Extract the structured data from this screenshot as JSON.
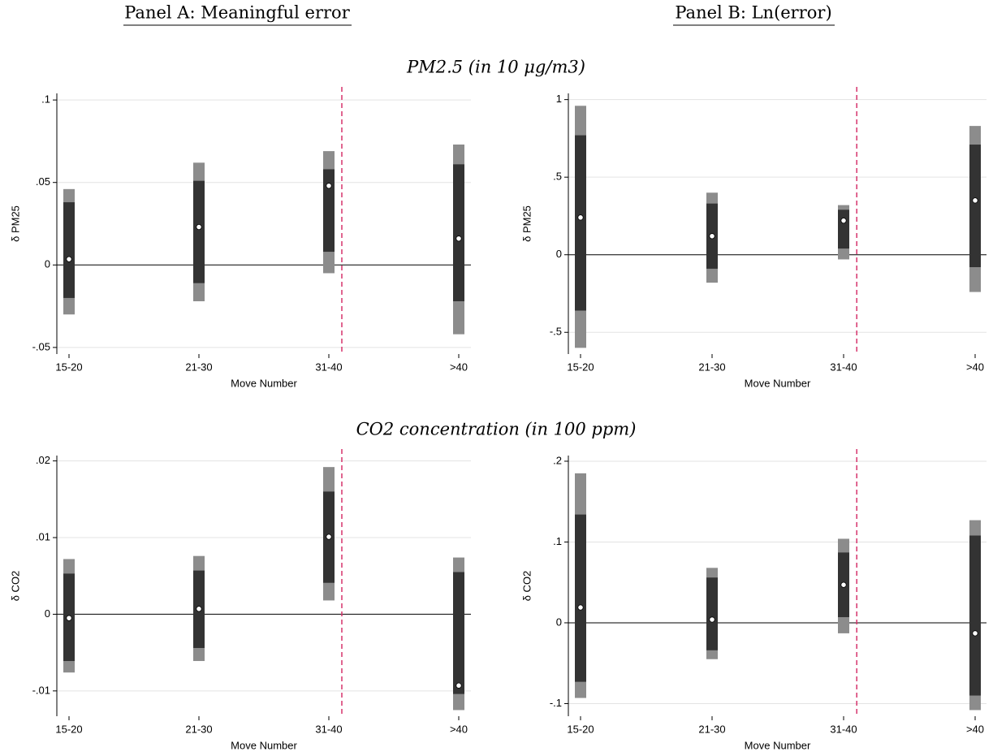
{
  "headers": [
    "Panel A: Meaningful error",
    "Panel B: Ln(error)"
  ],
  "row_titles": [
    "PM2.5 (in 10 μg/m3)",
    "CO2 concentration (in 100 ppm)"
  ],
  "chart_data": [
    {
      "type": "coefplot",
      "ylabel": "δ PM25",
      "xlabel": "Move Number",
      "categories": [
        "15-20",
        "21-30",
        "31-40",
        ">40"
      ],
      "values": [
        0.0035,
        0.023,
        0.048,
        0.016
      ],
      "inner_low": [
        -0.02,
        -0.011,
        0.008,
        -0.022
      ],
      "inner_high": [
        0.038,
        0.051,
        0.058,
        0.061
      ],
      "outer_low": [
        -0.03,
        -0.022,
        -0.005,
        -0.042
      ],
      "outer_high": [
        0.046,
        0.062,
        0.069,
        0.073
      ],
      "ylim": [
        -0.054,
        0.104
      ],
      "yticks": [
        {
          "value": -0.05,
          "label": "-.05"
        },
        0,
        {
          "value": 0.05,
          "label": ".05"
        },
        {
          "value": 0.1,
          "label": ".1"
        }
      ],
      "grid": true,
      "inner_color": "#333333",
      "outer_color": "#8c8c8c",
      "ref_color": "#d6336c"
    },
    {
      "type": "coefplot",
      "ylabel": "δ PM25",
      "xlabel": "Move Number",
      "categories": [
        "15-20",
        "21-30",
        "31-40",
        ">40"
      ],
      "values": [
        0.24,
        0.12,
        0.22,
        0.35
      ],
      "inner_low": [
        -0.36,
        -0.09,
        0.04,
        -0.08
      ],
      "inner_high": [
        0.77,
        0.33,
        0.29,
        0.71
      ],
      "outer_low": [
        -0.6,
        -0.18,
        -0.03,
        -0.24
      ],
      "outer_high": [
        0.96,
        0.4,
        0.32,
        0.83
      ],
      "ylim": [
        -0.64,
        1.04
      ],
      "yticks": [
        {
          "value": -0.5,
          "label": "-.5"
        },
        0,
        {
          "value": 0.5,
          "label": ".5"
        },
        1
      ],
      "grid": true,
      "inner_color": "#333333",
      "outer_color": "#8c8c8c",
      "ref_color": "#d6336c"
    },
    {
      "type": "coefplot",
      "ylabel": "δ CO2",
      "xlabel": "Move Number",
      "categories": [
        "15-20",
        "21-30",
        "31-40",
        ">40"
      ],
      "values": [
        -0.0005,
        0.0007,
        0.0101,
        -0.0093
      ],
      "inner_low": [
        -0.0061,
        -0.0044,
        0.0041,
        -0.0104
      ],
      "inner_high": [
        0.0053,
        0.0057,
        0.016,
        0.0055
      ],
      "outer_low": [
        -0.0076,
        -0.0061,
        0.0018,
        -0.0125
      ],
      "outer_high": [
        0.0072,
        0.0076,
        0.0192,
        0.0074
      ],
      "ylim": [
        -0.0133,
        0.0207
      ],
      "yticks": [
        {
          "value": -0.01,
          "label": "-.01"
        },
        0,
        {
          "value": 0.01,
          "label": ".01"
        },
        {
          "value": 0.02,
          "label": ".02"
        }
      ],
      "grid": true,
      "inner_color": "#333333",
      "outer_color": "#8c8c8c",
      "ref_color": "#d6336c"
    },
    {
      "type": "coefplot",
      "ylabel": "δ CO2",
      "xlabel": "Move Number",
      "categories": [
        "15-20",
        "21-30",
        "31-40",
        ">40"
      ],
      "values": [
        0.019,
        0.004,
        0.047,
        -0.013
      ],
      "inner_low": [
        -0.073,
        -0.034,
        0.007,
        -0.09
      ],
      "inner_high": [
        0.134,
        0.056,
        0.087,
        0.108
      ],
      "outer_low": [
        -0.093,
        -0.045,
        -0.013,
        -0.108
      ],
      "outer_high": [
        0.185,
        0.068,
        0.104,
        0.127
      ],
      "ylim": [
        -0.1156,
        0.207
      ],
      "yticks": [
        {
          "value": -0.1,
          "label": "-.1"
        },
        0,
        {
          "value": 0.1,
          "label": ".1"
        },
        {
          "value": 0.2,
          "label": ".2"
        }
      ],
      "grid": true,
      "inner_color": "#333333",
      "outer_color": "#8c8c8c",
      "ref_color": "#d6336c"
    }
  ]
}
